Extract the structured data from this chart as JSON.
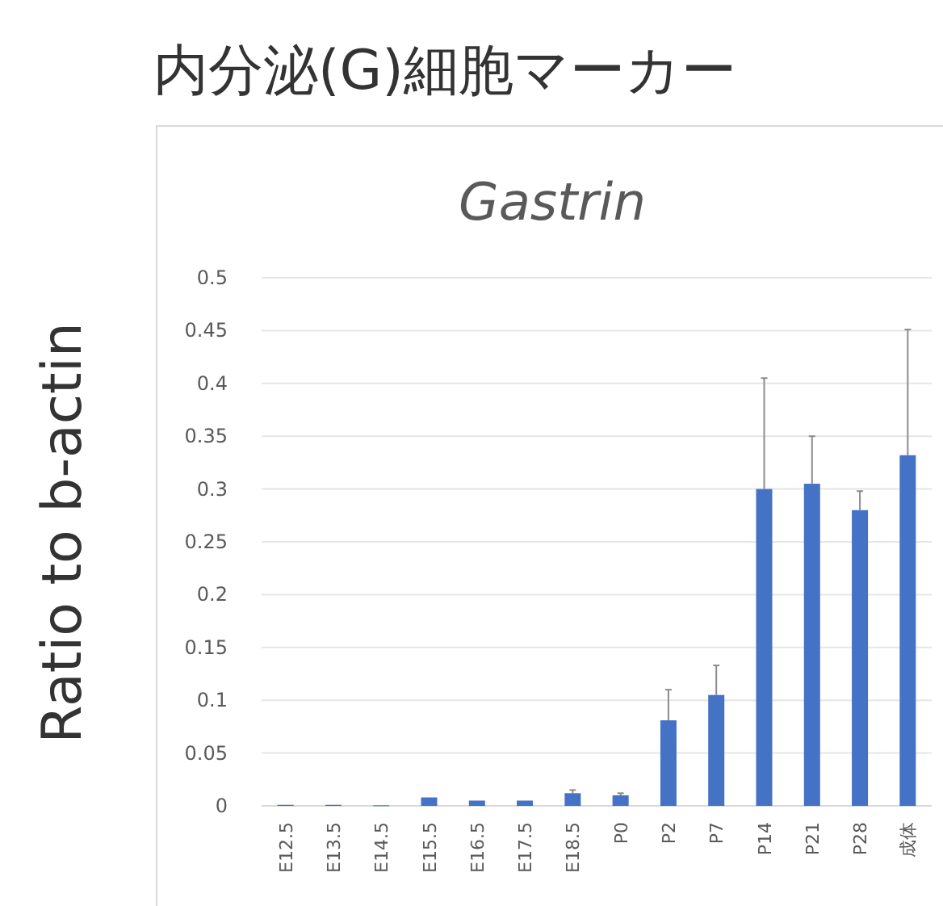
{
  "chart_data": {
    "type": "bar",
    "title": "内分泌(G)細胞マーカー",
    "subtitle": "Gastrin",
    "ylabel": "Ratio to b-actin",
    "categories": [
      "E12.5",
      "E13.5",
      "E14.5",
      "E15.5",
      "E16.5",
      "E17.5",
      "E18.5",
      "P0",
      "P2",
      "P7",
      "P14",
      "P21",
      "P28",
      "成体"
    ],
    "series": [
      {
        "color": "#4472c4",
        "values": [
          0.001,
          0.001,
          0.0005,
          0.008,
          0.005,
          0.005,
          0.012,
          0.01,
          0.081,
          0.105,
          0.3,
          0.305,
          0.28,
          0.332
        ],
        "errors": [
          null,
          null,
          null,
          null,
          null,
          null,
          [
            0.012,
            0.015
          ],
          [
            0.01,
            0.012
          ],
          [
            0.081,
            0.11
          ],
          [
            0.105,
            0.133
          ],
          [
            0.3,
            0.405
          ],
          [
            0.305,
            0.35
          ],
          [
            0.28,
            0.298
          ],
          [
            0.332,
            0.451
          ]
        ]
      }
    ],
    "ylim": [
      0,
      0.5
    ],
    "yticks": [
      0,
      0.05,
      0.1,
      0.15,
      0.2,
      0.25,
      0.3,
      0.35,
      0.4,
      0.45,
      0.5
    ],
    "grid": "y"
  }
}
